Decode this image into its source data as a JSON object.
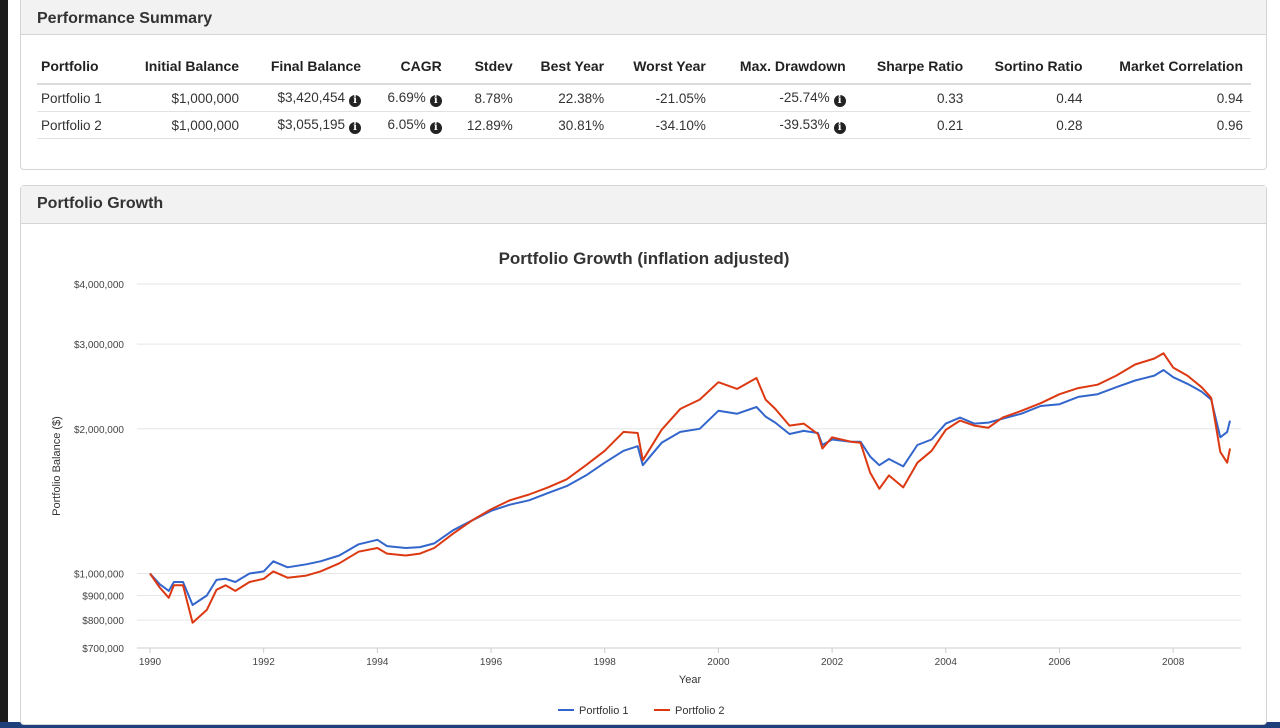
{
  "performance_summary": {
    "heading": "Performance Summary",
    "columns": [
      "Portfolio",
      "Initial Balance",
      "Final Balance",
      "CAGR",
      "Stdev",
      "Best Year",
      "Worst Year",
      "Max. Drawdown",
      "Sharpe Ratio",
      "Sortino Ratio",
      "Market Correlation"
    ],
    "rows": [
      {
        "portfolio": "Portfolio 1",
        "initial_balance": "$1,000,000",
        "final_balance": "$3,420,454",
        "cagr": "6.69%",
        "stdev": "8.78%",
        "best_year": "22.38%",
        "worst_year": "-21.05%",
        "max_drawdown": "-25.74%",
        "sharpe": "0.33",
        "sortino": "0.44",
        "market_correlation": "0.94"
      },
      {
        "portfolio": "Portfolio 2",
        "initial_balance": "$1,000,000",
        "final_balance": "$3,055,195",
        "cagr": "6.05%",
        "stdev": "12.89%",
        "best_year": "30.81%",
        "worst_year": "-34.10%",
        "max_drawdown": "-39.53%",
        "sharpe": "0.21",
        "sortino": "0.28",
        "market_correlation": "0.96"
      }
    ],
    "info_icon": "info-circle-icon"
  },
  "portfolio_growth": {
    "heading": "Portfolio Growth"
  },
  "chart_data": {
    "type": "line",
    "title": "Portfolio Growth (inflation adjusted)",
    "xlabel": "Year",
    "ylabel": "Portfolio Balance ($)",
    "y_scale": "log",
    "ylim": [
      700000,
      4000000
    ],
    "xlim": [
      1990,
      2009.1
    ],
    "y_ticks": [
      700000,
      800000,
      900000,
      1000000,
      2000000,
      3000000,
      4000000
    ],
    "y_tick_labels": [
      "$700,000",
      "$800,000",
      "$900,000",
      "$1,000,000",
      "$2,000,000",
      "$3,000,000",
      "$4,000,000"
    ],
    "x_ticks": [
      1990,
      1992,
      1994,
      1996,
      1998,
      2000,
      2002,
      2004,
      2006,
      2008
    ],
    "x_tick_labels": [
      "1990",
      "1992",
      "1994",
      "1996",
      "1998",
      "2000",
      "2002",
      "2004",
      "2006",
      "2008"
    ],
    "grid": "horizontal",
    "legend_position": "bottom",
    "series": [
      {
        "name": "Portfolio 1",
        "color": "#3366cc",
        "points": [
          [
            1990.0,
            1000000
          ],
          [
            1990.17,
            950000
          ],
          [
            1990.33,
            920000
          ],
          [
            1990.42,
            960000
          ],
          [
            1990.58,
            960000
          ],
          [
            1990.75,
            860000
          ],
          [
            1991.0,
            900000
          ],
          [
            1991.17,
            970000
          ],
          [
            1991.33,
            975000
          ],
          [
            1991.5,
            960000
          ],
          [
            1991.75,
            1000000
          ],
          [
            1992.0,
            1010000
          ],
          [
            1992.17,
            1060000
          ],
          [
            1992.42,
            1030000
          ],
          [
            1992.75,
            1045000
          ],
          [
            1993.0,
            1060000
          ],
          [
            1993.33,
            1090000
          ],
          [
            1993.67,
            1150000
          ],
          [
            1994.0,
            1175000
          ],
          [
            1994.17,
            1140000
          ],
          [
            1994.5,
            1130000
          ],
          [
            1994.75,
            1135000
          ],
          [
            1995.0,
            1155000
          ],
          [
            1995.33,
            1230000
          ],
          [
            1995.67,
            1290000
          ],
          [
            1996.0,
            1350000
          ],
          [
            1996.33,
            1390000
          ],
          [
            1996.67,
            1420000
          ],
          [
            1997.0,
            1470000
          ],
          [
            1997.33,
            1520000
          ],
          [
            1997.67,
            1600000
          ],
          [
            1998.0,
            1700000
          ],
          [
            1998.33,
            1800000
          ],
          [
            1998.58,
            1840000
          ],
          [
            1998.67,
            1680000
          ],
          [
            1999.0,
            1870000
          ],
          [
            1999.33,
            1970000
          ],
          [
            1999.67,
            2000000
          ],
          [
            2000.0,
            2180000
          ],
          [
            2000.33,
            2150000
          ],
          [
            2000.67,
            2220000
          ],
          [
            2000.83,
            2120000
          ],
          [
            2001.0,
            2060000
          ],
          [
            2001.25,
            1950000
          ],
          [
            2001.5,
            1980000
          ],
          [
            2001.75,
            1960000
          ],
          [
            2001.83,
            1850000
          ],
          [
            2002.0,
            1900000
          ],
          [
            2002.33,
            1880000
          ],
          [
            2002.5,
            1880000
          ],
          [
            2002.67,
            1750000
          ],
          [
            2002.83,
            1680000
          ],
          [
            2003.0,
            1730000
          ],
          [
            2003.25,
            1670000
          ],
          [
            2003.5,
            1850000
          ],
          [
            2003.75,
            1900000
          ],
          [
            2004.0,
            2050000
          ],
          [
            2004.25,
            2110000
          ],
          [
            2004.5,
            2050000
          ],
          [
            2004.75,
            2060000
          ],
          [
            2005.0,
            2100000
          ],
          [
            2005.33,
            2150000
          ],
          [
            2005.67,
            2230000
          ],
          [
            2006.0,
            2250000
          ],
          [
            2006.33,
            2330000
          ],
          [
            2006.67,
            2360000
          ],
          [
            2007.0,
            2440000
          ],
          [
            2007.33,
            2520000
          ],
          [
            2007.67,
            2580000
          ],
          [
            2007.83,
            2650000
          ],
          [
            2008.0,
            2560000
          ],
          [
            2008.25,
            2480000
          ],
          [
            2008.5,
            2390000
          ],
          [
            2008.67,
            2300000
          ],
          [
            2008.83,
            1920000
          ],
          [
            2008.95,
            1970000
          ],
          [
            2009.0,
            2080000
          ]
        ]
      },
      {
        "name": "Portfolio 2",
        "color": "#dc3912",
        "points": [
          [
            1990.0,
            1000000
          ],
          [
            1990.17,
            935000
          ],
          [
            1990.33,
            890000
          ],
          [
            1990.42,
            945000
          ],
          [
            1990.58,
            945000
          ],
          [
            1990.75,
            790000
          ],
          [
            1991.0,
            840000
          ],
          [
            1991.17,
            925000
          ],
          [
            1991.33,
            945000
          ],
          [
            1991.5,
            920000
          ],
          [
            1991.75,
            960000
          ],
          [
            1992.0,
            975000
          ],
          [
            1992.17,
            1010000
          ],
          [
            1992.42,
            980000
          ],
          [
            1992.75,
            990000
          ],
          [
            1993.0,
            1010000
          ],
          [
            1993.33,
            1050000
          ],
          [
            1993.67,
            1110000
          ],
          [
            1994.0,
            1130000
          ],
          [
            1994.17,
            1100000
          ],
          [
            1994.5,
            1090000
          ],
          [
            1994.75,
            1100000
          ],
          [
            1995.0,
            1130000
          ],
          [
            1995.33,
            1210000
          ],
          [
            1995.67,
            1290000
          ],
          [
            1996.0,
            1360000
          ],
          [
            1996.33,
            1420000
          ],
          [
            1996.67,
            1460000
          ],
          [
            1997.0,
            1510000
          ],
          [
            1997.33,
            1570000
          ],
          [
            1997.67,
            1680000
          ],
          [
            1998.0,
            1800000
          ],
          [
            1998.33,
            1970000
          ],
          [
            1998.58,
            1960000
          ],
          [
            1998.67,
            1720000
          ],
          [
            1999.0,
            1990000
          ],
          [
            1999.33,
            2200000
          ],
          [
            1999.67,
            2300000
          ],
          [
            2000.0,
            2500000
          ],
          [
            2000.33,
            2420000
          ],
          [
            2000.67,
            2550000
          ],
          [
            2000.83,
            2300000
          ],
          [
            2001.0,
            2200000
          ],
          [
            2001.25,
            2030000
          ],
          [
            2001.5,
            2050000
          ],
          [
            2001.75,
            1950000
          ],
          [
            2001.83,
            1820000
          ],
          [
            2002.0,
            1920000
          ],
          [
            2002.33,
            1880000
          ],
          [
            2002.5,
            1870000
          ],
          [
            2002.67,
            1620000
          ],
          [
            2002.83,
            1500000
          ],
          [
            2003.0,
            1600000
          ],
          [
            2003.25,
            1510000
          ],
          [
            2003.5,
            1700000
          ],
          [
            2003.75,
            1800000
          ],
          [
            2004.0,
            1990000
          ],
          [
            2004.25,
            2080000
          ],
          [
            2004.5,
            2030000
          ],
          [
            2004.75,
            2010000
          ],
          [
            2005.0,
            2110000
          ],
          [
            2005.33,
            2180000
          ],
          [
            2005.67,
            2260000
          ],
          [
            2006.0,
            2360000
          ],
          [
            2006.33,
            2430000
          ],
          [
            2006.67,
            2470000
          ],
          [
            2007.0,
            2580000
          ],
          [
            2007.33,
            2720000
          ],
          [
            2007.67,
            2800000
          ],
          [
            2007.83,
            2870000
          ],
          [
            2008.0,
            2680000
          ],
          [
            2008.25,
            2580000
          ],
          [
            2008.5,
            2440000
          ],
          [
            2008.67,
            2320000
          ],
          [
            2008.83,
            1790000
          ],
          [
            2008.95,
            1700000
          ],
          [
            2009.0,
            1820000
          ]
        ]
      }
    ]
  }
}
